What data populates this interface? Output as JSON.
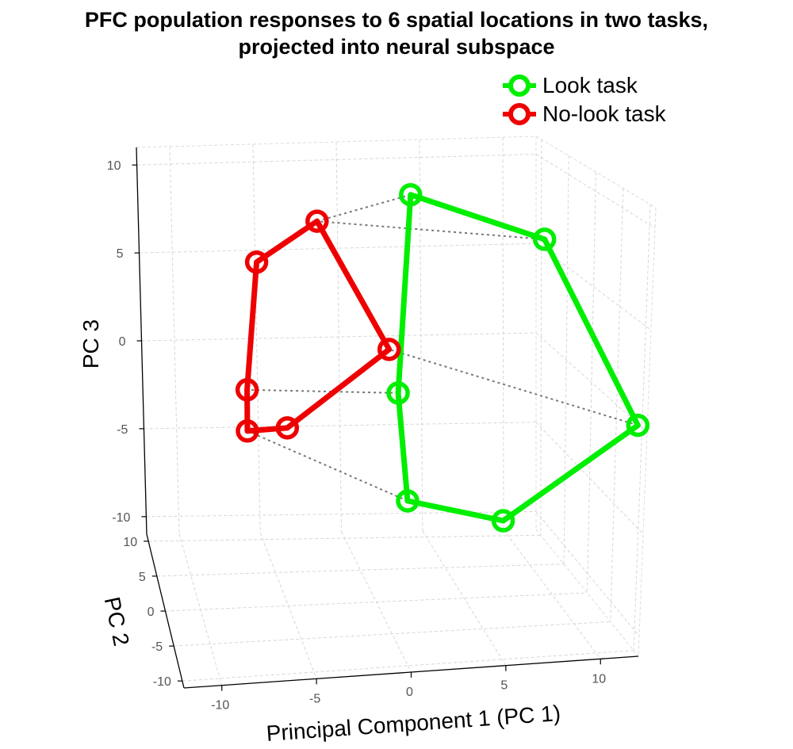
{
  "title_line1": "PFC population responses to 6 spatial locations in two tasks,",
  "title_line2": "projected into neural subspace",
  "chart_data": {
    "type": "scatter",
    "subtype": "3d-line-loop",
    "title": "PFC population responses to 6 spatial locations in two tasks, projected into neural subspace",
    "xlabel": "Principal Component 1 (PC 1)",
    "ylabel": "PC 2",
    "zlabel": "PC 3",
    "xlim": [
      -12,
      12
    ],
    "ylim": [
      -11,
      11
    ],
    "zlim": [
      -11,
      11
    ],
    "xticks": [
      "-10",
      "-5",
      "0",
      "5",
      "10"
    ],
    "yticks": [
      "10",
      "5",
      "0",
      "-5",
      "-10"
    ],
    "zticks": [
      "10",
      "5",
      "0",
      "-5",
      "-10"
    ],
    "grid": true,
    "legend_position": "top-right",
    "series": [
      {
        "name": "Look task",
        "color": "#00ee00",
        "marker": "circle",
        "closed": true,
        "points": [
          {
            "x": 0.2,
            "y": 0.0,
            "z": 8.9
          },
          {
            "x": 7.9,
            "y": 0.0,
            "z": 6.9
          },
          {
            "x": 13.2,
            "y": 0.0,
            "z": -3.9
          },
          {
            "x": 5.4,
            "y": 0.0,
            "z": -10.4
          },
          {
            "x": -0.1,
            "y": 0.0,
            "z": -9.7
          },
          {
            "x": -0.6,
            "y": 0.0,
            "z": -3.2
          }
        ]
      },
      {
        "name": "No-look task",
        "color": "#ee0000",
        "marker": "circle",
        "closed": true,
        "points": [
          {
            "x": -5.2,
            "y": 0.0,
            "z": 6.8
          },
          {
            "x": -1.1,
            "y": 0.0,
            "z": -0.6
          },
          {
            "x": -7.0,
            "y": 0.0,
            "z": -5.9
          },
          {
            "x": -9.3,
            "y": 0.0,
            "z": -6.3
          },
          {
            "x": -9.3,
            "y": 0.0,
            "z": -3.8
          },
          {
            "x": -8.7,
            "y": 0.0,
            "z": 4.0
          }
        ]
      }
    ],
    "correspondence_lines": {
      "style": "dotted",
      "color": "#777777",
      "pairs": [
        [
          0,
          0
        ],
        [
          1,
          0
        ],
        [
          2,
          1
        ],
        [
          5,
          4
        ],
        [
          4,
          3
        ]
      ]
    }
  }
}
